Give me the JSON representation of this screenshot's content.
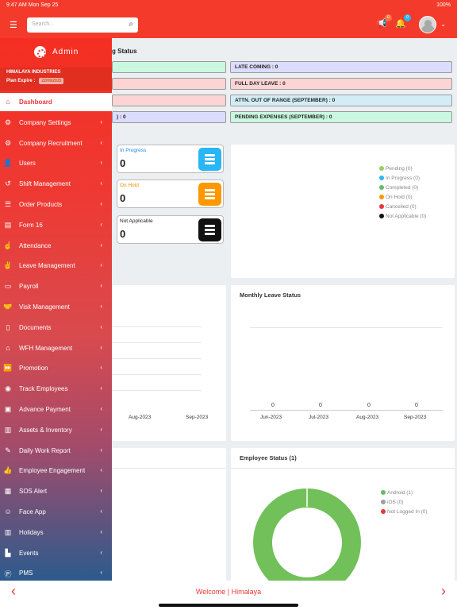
{
  "statusbar": {
    "time": "9:47 AM  Mon Sep 25",
    "battery": "100%"
  },
  "header": {
    "search_placeholder": "Search...",
    "notif_badge": "0",
    "bell_badge": "0"
  },
  "section_title": "g Status",
  "stats": {
    "late_coming": "LATE COMING : 0",
    "full_day_leave": "FULL DAY LEAVE : 0",
    "attn_out_of_range": "ATTN. OUT OF RANGE (SEPTEMBER) : 0",
    "pending_expenses": "PENDING EXPENSES (SEPTEMBER) : 0",
    "partial_left": ") : 0"
  },
  "project_status": [
    {
      "label": "In Progress",
      "value": "0"
    },
    {
      "label": "On Hold",
      "value": "0"
    },
    {
      "label": "Not Applicable",
      "value": "0"
    }
  ],
  "project_legend": [
    "Pending (0)",
    "In Progress (0)",
    "Completed (0)",
    "On Hold (0)",
    "Cancelled (0)",
    "Not Applicable (0)"
  ],
  "left_chart_axis": [
    "Aug-2023",
    "Sep-2023"
  ],
  "monthly_leave": {
    "title": "Monthly Leave Status",
    "values": [
      "0",
      "0",
      "0",
      "0"
    ],
    "months": [
      "Jun-2023",
      "Jul-2023",
      "Aug-2023",
      "Sep-2023"
    ]
  },
  "employee_status": {
    "title": "Employee Status (1)",
    "legend": [
      "Android (1)",
      "iOS (0)",
      "Not Logged In (0)"
    ]
  },
  "chart_data": [
    {
      "type": "bar",
      "title": "Monthly Leave Status",
      "categories": [
        "Jun-2023",
        "Jul-2023",
        "Aug-2023",
        "Sep-2023"
      ],
      "values": [
        0,
        0,
        0,
        0
      ]
    },
    {
      "type": "pie",
      "title": "Employee Status (1)",
      "categories": [
        "Android",
        "iOS",
        "Not Logged In"
      ],
      "values": [
        1,
        0,
        0
      ]
    }
  ],
  "sidebar": {
    "logo": "Admin",
    "company": "HIMALAYA INDUSTRIES",
    "plan_label": "Plan Expire :",
    "plan_date": "22/09/2025",
    "items": [
      {
        "label": "Dashboard",
        "icon": "home-icon"
      },
      {
        "label": "Company Settings",
        "icon": "gears-icon"
      },
      {
        "label": "Company Recruitment",
        "icon": "gear-icon"
      },
      {
        "label": "Users",
        "icon": "user-icon"
      },
      {
        "label": "Shift Management",
        "icon": "history-icon"
      },
      {
        "label": "Order Products",
        "icon": "list-icon"
      },
      {
        "label": "Form 16",
        "icon": "file-icon"
      },
      {
        "label": "Attendance",
        "icon": "hand-icon"
      },
      {
        "label": "Leave Management",
        "icon": "hand-peace-icon"
      },
      {
        "label": "Payroll",
        "icon": "money-icon"
      },
      {
        "label": "Visit Management",
        "icon": "handshake-icon"
      },
      {
        "label": "Documents",
        "icon": "document-icon"
      },
      {
        "label": "WFH Management",
        "icon": "house-icon"
      },
      {
        "label": "Promotion",
        "icon": "fast-forward-icon"
      },
      {
        "label": "Track Employees",
        "icon": "pointer-icon"
      },
      {
        "label": "Advance Payment",
        "icon": "cash-icon"
      },
      {
        "label": "Assets & Inventory",
        "icon": "book-icon"
      },
      {
        "label": "Daily Work Report",
        "icon": "note-icon"
      },
      {
        "label": "Employee Engagement",
        "icon": "thumbs-up-icon"
      },
      {
        "label": "SOS Alert",
        "icon": "alert-icon"
      },
      {
        "label": "Face App",
        "icon": "face-icon"
      },
      {
        "label": "Holidays",
        "icon": "building-icon"
      },
      {
        "label": "Events",
        "icon": "chart-icon"
      },
      {
        "label": "PMS",
        "icon": "p-icon"
      }
    ]
  },
  "bottom": {
    "welcome": "Welcome | Himalaya"
  }
}
